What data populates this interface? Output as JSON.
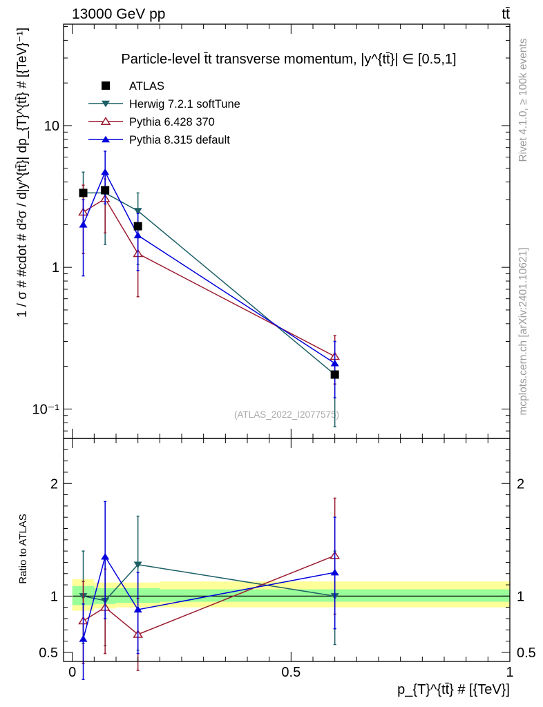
{
  "header": {
    "energy_label": "13000 GeV pp",
    "process_label": "tt̄"
  },
  "side": {
    "rivet_label": "Rivet 4.1.0, ≥ 100k events",
    "site_label": "mcplots.cern.ch [arXiv:2401.10621]"
  },
  "chart_data": [
    {
      "type": "line",
      "scale": "log",
      "title": "Particle-level t̄t transverse momentum, |y^{tt̄}| ∈ [0.5,1]",
      "ylabel": "1 / σ # #cdot # d²σ / d|y^{tt̄}| dp_{T}^{tt̄} # [{TeV}⁻¹]",
      "ylim": [
        0.062,
        52
      ],
      "xlim": [
        -0.02,
        1.0
      ],
      "yticks": [
        {
          "value": 10,
          "label": "10"
        },
        {
          "value": 1,
          "label": "1"
        },
        {
          "value": 0.1,
          "label": "10⁻¹"
        }
      ],
      "watermark": "(ATLAS_2022_I2077575)",
      "x": [
        0.025,
        0.075,
        0.15,
        0.6
      ],
      "series": [
        {
          "name": "ATLAS",
          "color": "#000000",
          "marker": "square",
          "values": [
            3.35,
            3.5,
            1.95,
            0.175
          ],
          "err_lo": [
            0,
            0,
            0,
            0
          ],
          "err_hi": [
            0,
            0,
            0,
            0
          ]
        },
        {
          "name": "Herwig 7.2.1 softTune",
          "color": "#1d6066",
          "marker": "triangle-down",
          "values": [
            3.35,
            3.35,
            2.5,
            0.175
          ],
          "err_lo": [
            1.95,
            1.45,
            1.05,
            0.075
          ],
          "err_hi": [
            4.7,
            4.6,
            3.35,
            0.245
          ]
        },
        {
          "name": "Pythia 6.428 370",
          "color": "#9b1b30",
          "marker": "triangle-open",
          "values": [
            2.45,
            3.05,
            1.25,
            0.235
          ],
          "err_lo": [
            1.25,
            1.75,
            0.62,
            0.15
          ],
          "err_hi": [
            3.8,
            4.2,
            1.85,
            0.33
          ]
        },
        {
          "name": "Pythia 8.315 default",
          "color": "#0000dd",
          "marker": "triangle-up",
          "values": [
            2.0,
            4.7,
            1.68,
            0.21
          ],
          "err_lo": [
            0.87,
            2.8,
            0.95,
            0.12
          ],
          "err_hi": [
            3.0,
            6.6,
            2.4,
            0.3
          ]
        }
      ]
    },
    {
      "type": "line",
      "ylabel": "Ratio to ATLAS",
      "xlabel": "p_{T}^{tt̄} # [{TeV}]",
      "ylim": [
        0.42,
        2.4
      ],
      "xlim": [
        -0.02,
        1.0
      ],
      "xticks": [
        {
          "value": 0,
          "label": "0"
        },
        {
          "value": 0.5,
          "label": "0.5"
        },
        {
          "value": 1,
          "label": "1"
        }
      ],
      "yticks": [
        {
          "value": 2,
          "label": "2"
        },
        {
          "value": 1,
          "label": "1"
        },
        {
          "value": 0.5,
          "label": "0.5"
        }
      ],
      "band_stat": [
        {
          "x0": 0.0,
          "x1": 0.05,
          "lo": 0.92,
          "hi": 1.09
        },
        {
          "x0": 0.05,
          "x1": 0.1,
          "lo": 0.93,
          "hi": 1.07
        },
        {
          "x0": 0.1,
          "x1": 0.2,
          "lo": 0.94,
          "hi": 1.07
        },
        {
          "x0": 0.2,
          "x1": 1.0,
          "lo": 0.95,
          "hi": 1.06
        }
      ],
      "band_total": [
        {
          "x0": 0.0,
          "x1": 0.05,
          "lo": 0.87,
          "hi": 1.15
        },
        {
          "x0": 0.05,
          "x1": 0.1,
          "lo": 0.89,
          "hi": 1.12
        },
        {
          "x0": 0.1,
          "x1": 0.2,
          "lo": 0.9,
          "hi": 1.12
        },
        {
          "x0": 0.2,
          "x1": 1.0,
          "lo": 0.9,
          "hi": 1.13
        }
      ],
      "x": [
        0.025,
        0.075,
        0.15,
        0.6
      ],
      "series": [
        {
          "name": "Herwig 7.2.1 softTune",
          "color": "#1d6066",
          "marker": "triangle-down",
          "values": [
            1.0,
            0.96,
            1.28,
            1.0
          ],
          "err_lo": [
            0.58,
            0.56,
            0.52,
            0.57
          ],
          "err_hi": [
            1.4,
            1.34,
            1.71,
            1.4
          ]
        },
        {
          "name": "Pythia 6.428 370",
          "color": "#9b1b30",
          "marker": "triangle-open",
          "values": [
            0.78,
            0.9,
            0.66,
            1.36
          ],
          "err_lo": [
            0.4,
            0.49,
            0.34,
            0.84
          ],
          "err_hi": [
            1.13,
            1.24,
            0.98,
            1.87
          ]
        },
        {
          "name": "Pythia 8.315 default",
          "color": "#0000dd",
          "marker": "triangle-up",
          "values": [
            0.62,
            1.35,
            0.88,
            1.21
          ],
          "err_lo": [
            0.26,
            0.8,
            0.49,
            0.71
          ],
          "err_hi": [
            0.93,
            1.84,
            1.21,
            1.7
          ]
        }
      ]
    }
  ]
}
